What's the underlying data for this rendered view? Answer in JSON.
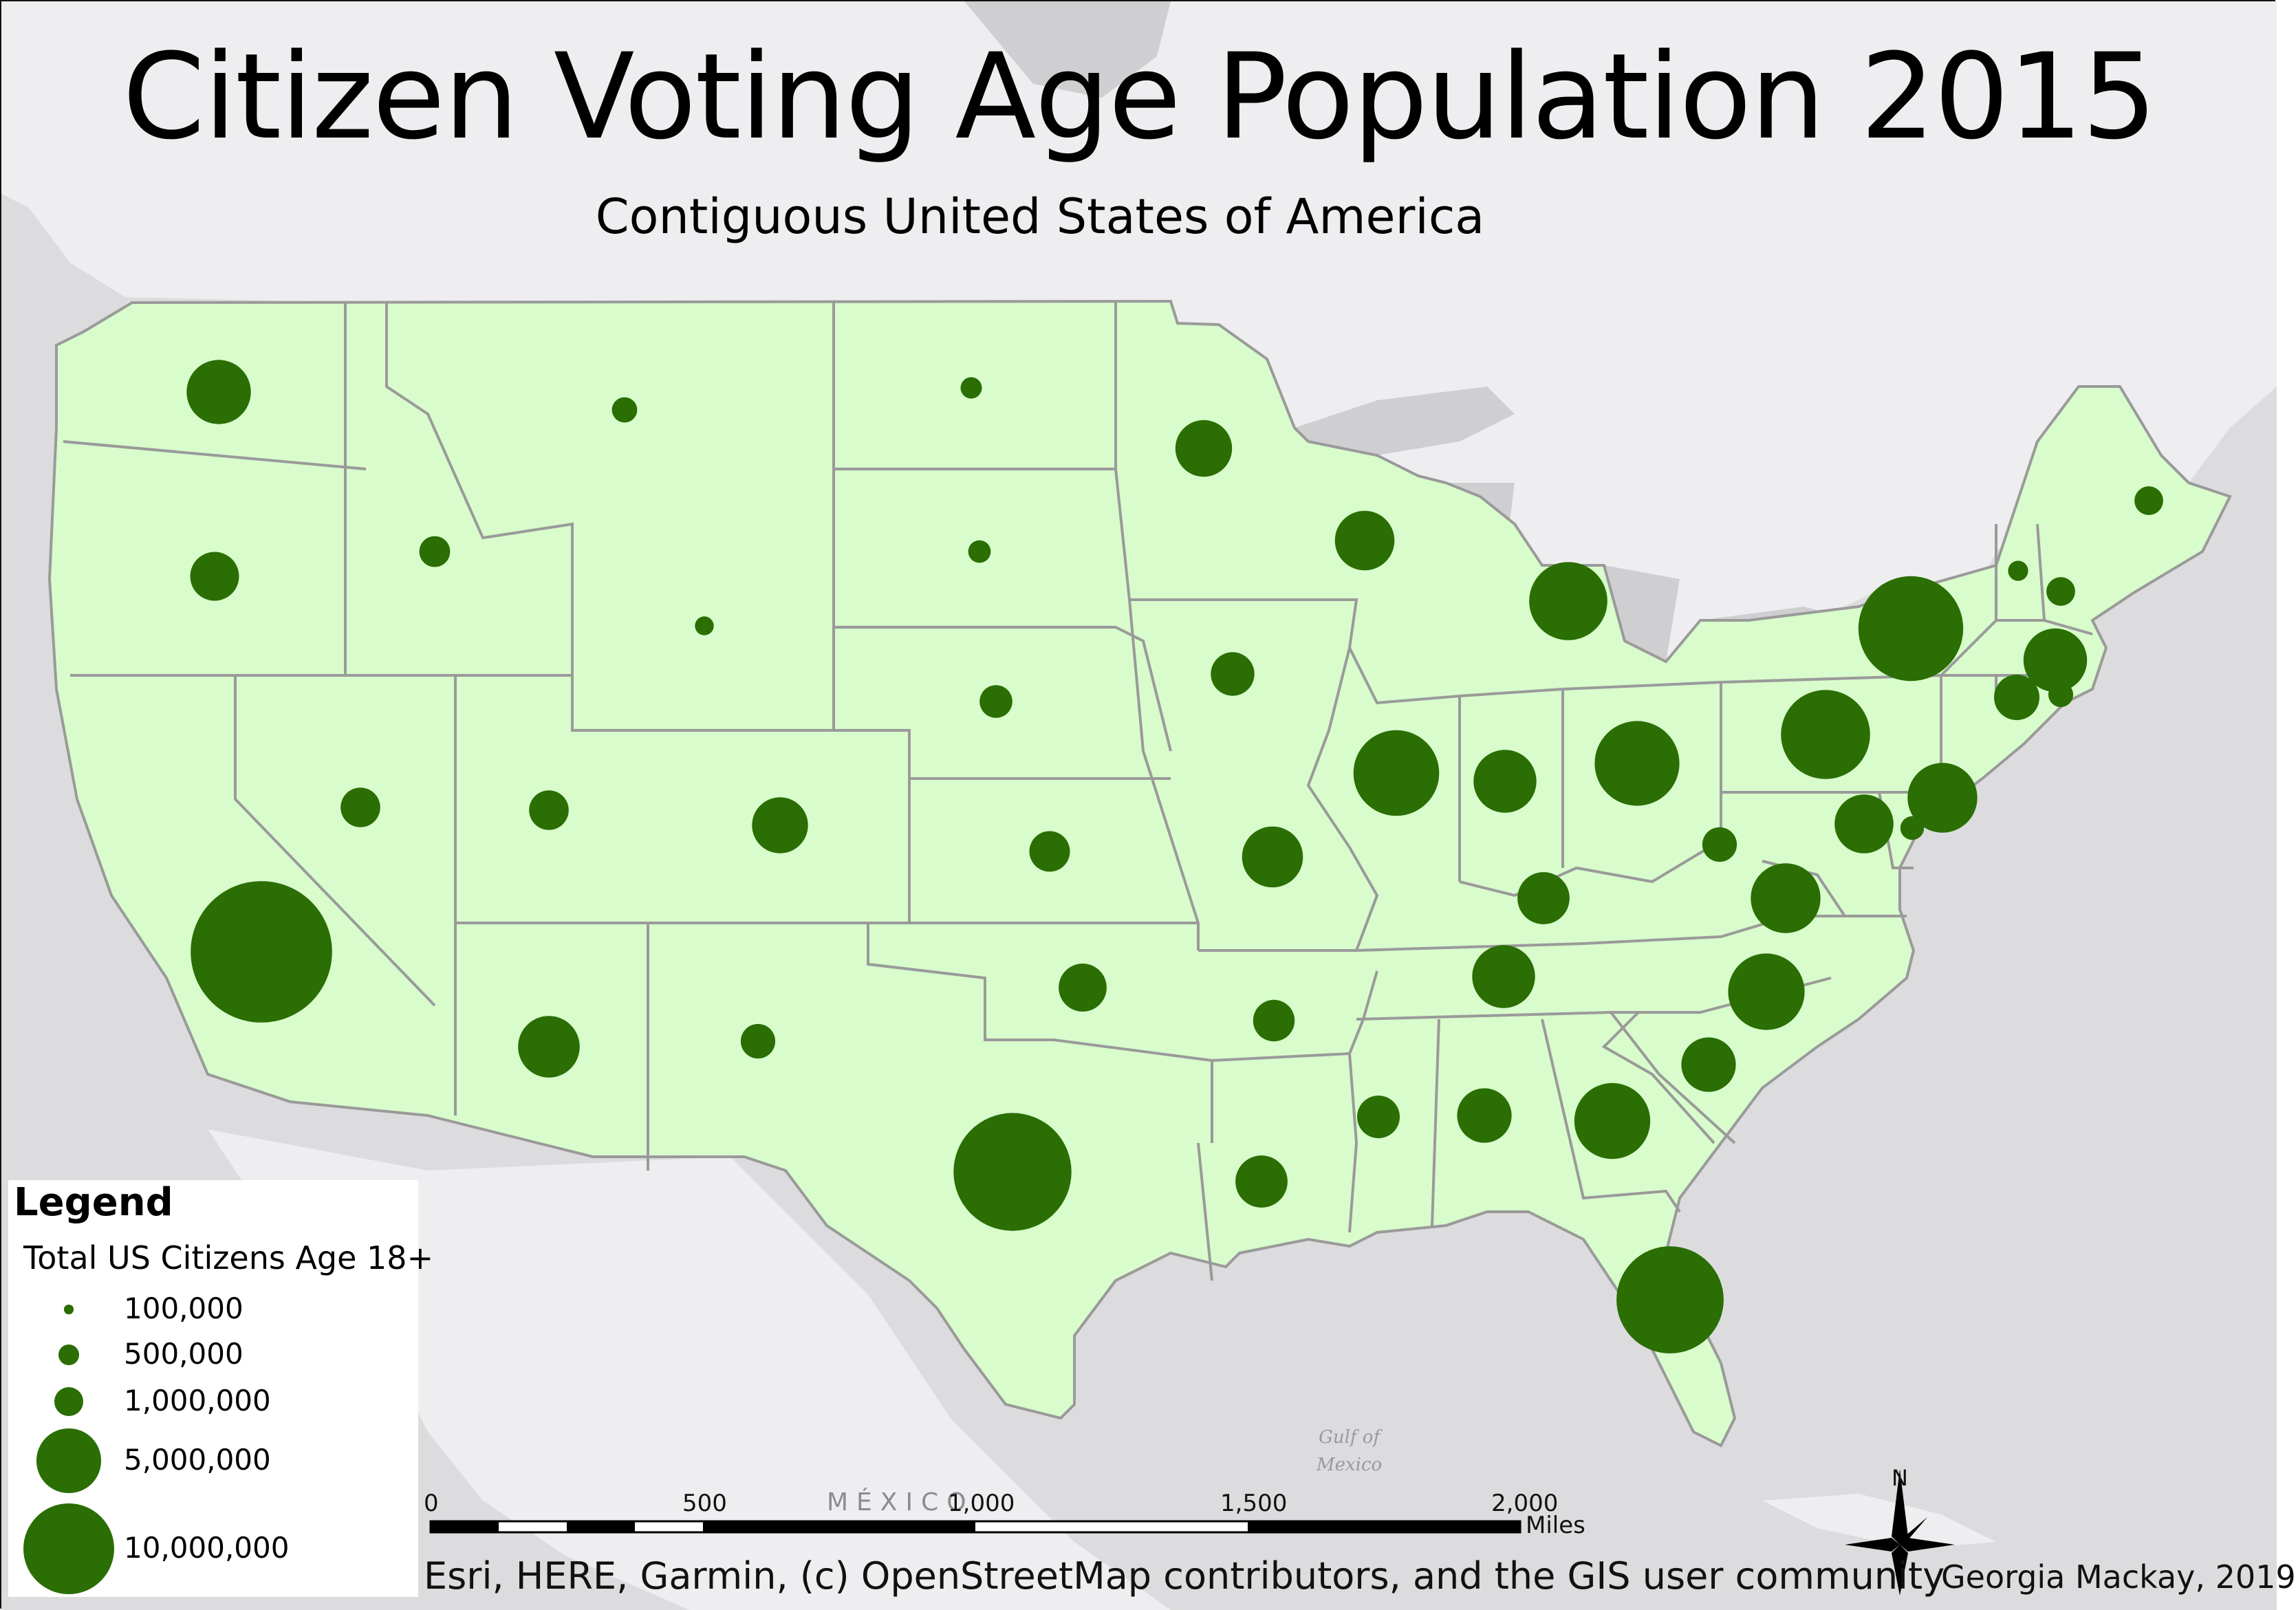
{
  "map": {
    "title": "Citizen Voting Age Population 2015",
    "subtitle": "Contiguous United States of America",
    "colors": {
      "background": "#dcdcde",
      "land_context": "#eeeef0",
      "water": "#cfcfd2",
      "state_fill": "#d8fccb",
      "state_border": "#9a9a9a",
      "symbol": "#2a6e04"
    }
  },
  "chart_data": {
    "type": "proportional_symbol_map",
    "field": "Total US Citizens Age 18+",
    "symbol_scale": "radius proportional to square root of value",
    "symbols": [
      {
        "state": "California",
        "value": 24280000
      },
      {
        "state": "Texas",
        "value": 16850000
      },
      {
        "state": "Florida",
        "value": 13940000
      },
      {
        "state": "New York",
        "value": 13320000
      },
      {
        "state": "Pennsylvania",
        "value": 9650000
      },
      {
        "state": "Illinois",
        "value": 8900000
      },
      {
        "state": "Ohio",
        "value": 8700000
      },
      {
        "state": "Michigan",
        "value": 7400000
      },
      {
        "state": "North Carolina",
        "value": 7100000
      },
      {
        "state": "Georgia",
        "value": 7000000
      },
      {
        "state": "New Jersey",
        "value": 5900000
      },
      {
        "state": "Virginia",
        "value": 5900000
      },
      {
        "state": "Washington",
        "value": 5000000
      },
      {
        "state": "Massachusetts",
        "value": 4900000
      },
      {
        "state": "Arizona",
        "value": 4600000
      },
      {
        "state": "Tennessee",
        "value": 4800000
      },
      {
        "state": "Indiana",
        "value": 4800000
      },
      {
        "state": "Missouri",
        "value": 4500000
      },
      {
        "state": "Maryland",
        "value": 4200000
      },
      {
        "state": "Wisconsin",
        "value": 4300000
      },
      {
        "state": "Minnesota",
        "value": 3900000
      },
      {
        "state": "Colorado",
        "value": 3800000
      },
      {
        "state": "Alabama",
        "value": 3600000
      },
      {
        "state": "South Carolina",
        "value": 3600000
      },
      {
        "state": "Louisiana",
        "value": 3300000
      },
      {
        "state": "Kentucky",
        "value": 3300000
      },
      {
        "state": "Oregon",
        "value": 2900000
      },
      {
        "state": "Oklahoma",
        "value": 2800000
      },
      {
        "state": "Connecticut",
        "value": 2500000
      },
      {
        "state": "Iowa",
        "value": 2300000
      },
      {
        "state": "Mississippi",
        "value": 2200000
      },
      {
        "state": "Arkansas",
        "value": 2100000
      },
      {
        "state": "Kansas",
        "value": 2000000
      },
      {
        "state": "Utah",
        "value": 1900000
      },
      {
        "state": "Nevada",
        "value": 1900000
      },
      {
        "state": "New Mexico",
        "value": 1450000
      },
      {
        "state": "West Virginia",
        "value": 1450000
      },
      {
        "state": "Nebraska",
        "value": 1300000
      },
      {
        "state": "Idaho",
        "value": 1150000
      },
      {
        "state": "New Hampshire",
        "value": 1000000
      },
      {
        "state": "Maine",
        "value": 1000000
      },
      {
        "state": "Rhode Island",
        "value": 750000
      },
      {
        "state": "Montana",
        "value": 780000
      },
      {
        "state": "Delaware",
        "value": 680000
      },
      {
        "state": "South Dakota",
        "value": 620000
      },
      {
        "state": "Vermont",
        "value": 490000
      },
      {
        "state": "North Dakota",
        "value": 550000
      },
      {
        "state": "Wyoming",
        "value": 430000
      }
    ],
    "legend_classes": [
      100000,
      500000,
      1000000,
      5000000,
      10000000
    ]
  },
  "legend": {
    "title": "Legend",
    "field": "Total US Citizens Age 18+",
    "items": [
      {
        "label": "100,000",
        "value": 100000
      },
      {
        "label": "500,000",
        "value": 500000
      },
      {
        "label": "1,000,000",
        "value": 1000000
      },
      {
        "label": "5,000,000",
        "value": 5000000
      },
      {
        "label": "10,000,000",
        "value": 10000000
      }
    ]
  },
  "scale_bar": {
    "ticks": [
      "0",
      "500",
      "1,000",
      "1,500",
      "2,000"
    ],
    "units": "Miles"
  },
  "north_arrow": {
    "label": "N"
  },
  "place_labels": {
    "mexico": "MÉXICO",
    "gulf": [
      "Gulf of",
      "Mexico"
    ]
  },
  "credits": "Esri, HERE, Garmin, (c) OpenStreetMap contributors, and the GIS user community",
  "author": "Georgia Mackay, 2019"
}
